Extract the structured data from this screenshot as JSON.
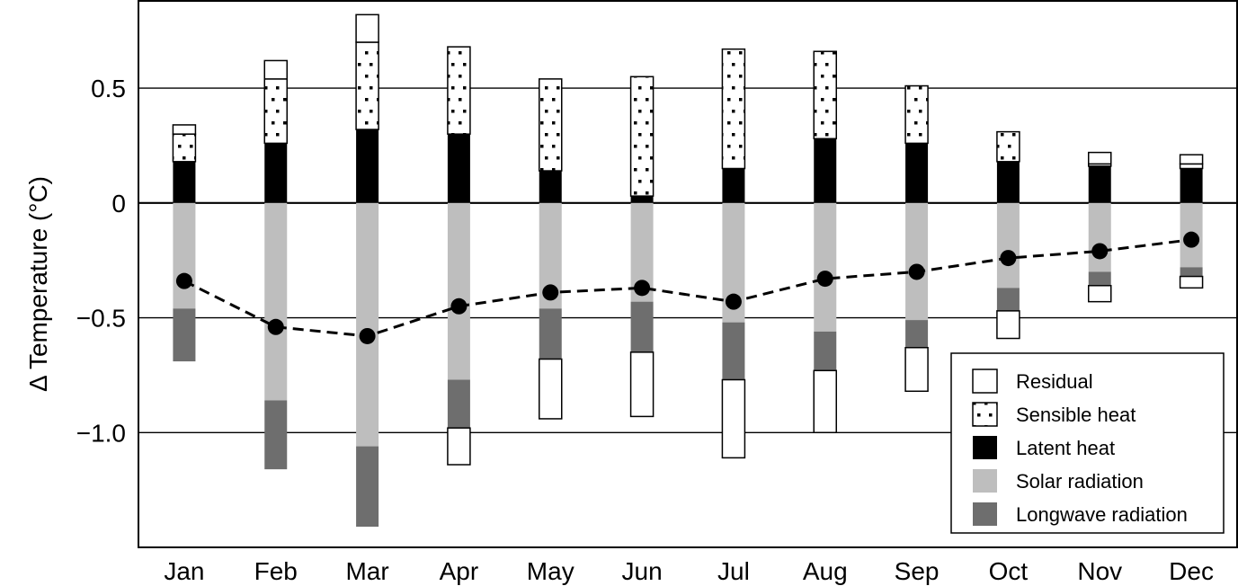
{
  "chart_data": {
    "type": "bar",
    "stacked": true,
    "ylabel": "Δ Temperature (°C)",
    "ylim": [
      -1.5,
      0.88
    ],
    "yticks": [
      0.5,
      0,
      -0.5,
      -1.0
    ],
    "ytick_labels": [
      "0.5",
      "0",
      "−0.5",
      "−1.0"
    ],
    "grid": "horizontal",
    "legend_position": "bottom-right",
    "categories": [
      "Jan",
      "Feb",
      "Mar",
      "Apr",
      "May",
      "Jun",
      "Jul",
      "Aug",
      "Sep",
      "Oct",
      "Nov",
      "Dec"
    ],
    "series": [
      {
        "name": "Latent heat",
        "stack": "positive",
        "style": "black",
        "values": [
          0.18,
          0.26,
          0.32,
          0.3,
          0.14,
          0.03,
          0.15,
          0.28,
          0.26,
          0.18,
          0.16,
          0.15
        ]
      },
      {
        "name": "Sensible heat",
        "stack": "positive",
        "style": "dotted",
        "values": [
          0.12,
          0.28,
          0.38,
          0.38,
          0.4,
          0.52,
          0.52,
          0.38,
          0.25,
          0.13,
          0.01,
          0.02
        ]
      },
      {
        "name": "Residual",
        "stack": "positive",
        "style": "white",
        "values": [
          0.04,
          0.08,
          0.12,
          0.0,
          0.0,
          0.0,
          0.0,
          0.0,
          0.0,
          0.0,
          0.05,
          0.04
        ]
      },
      {
        "name": "Solar radiation",
        "stack": "negative",
        "style": "lightgray",
        "values": [
          -0.46,
          -0.86,
          -1.06,
          -0.77,
          -0.46,
          -0.43,
          -0.52,
          -0.56,
          -0.51,
          -0.37,
          -0.3,
          -0.28
        ]
      },
      {
        "name": "Longwave radiation",
        "stack": "negative",
        "style": "darkgray",
        "values": [
          -0.23,
          -0.3,
          -0.35,
          -0.21,
          -0.22,
          -0.22,
          -0.25,
          -0.17,
          -0.12,
          -0.1,
          -0.06,
          -0.04
        ]
      },
      {
        "name": "Residual",
        "stack": "negative",
        "style": "white",
        "values": [
          0.0,
          0.0,
          0.0,
          -0.16,
          -0.26,
          -0.28,
          -0.34,
          -0.27,
          -0.19,
          -0.12,
          -0.07,
          -0.05
        ]
      }
    ],
    "net_line": {
      "style": "dashed-with-dots",
      "values": [
        -0.34,
        -0.54,
        -0.58,
        -0.45,
        -0.39,
        -0.37,
        -0.43,
        -0.33,
        -0.3,
        -0.24,
        -0.21,
        -0.16
      ]
    },
    "legend": [
      {
        "label": "Residual",
        "style": "white"
      },
      {
        "label": "Sensible heat",
        "style": "dotted"
      },
      {
        "label": "Latent heat",
        "style": "black"
      },
      {
        "label": "Solar radiation",
        "style": "lightgray"
      },
      {
        "label": "Longwave radiation",
        "style": "darkgray"
      }
    ],
    "colors": {
      "black": "#000000",
      "lightgray": "#bebebe",
      "darkgray": "#6e6e6e",
      "white": "#ffffff",
      "line": "#000000"
    }
  }
}
